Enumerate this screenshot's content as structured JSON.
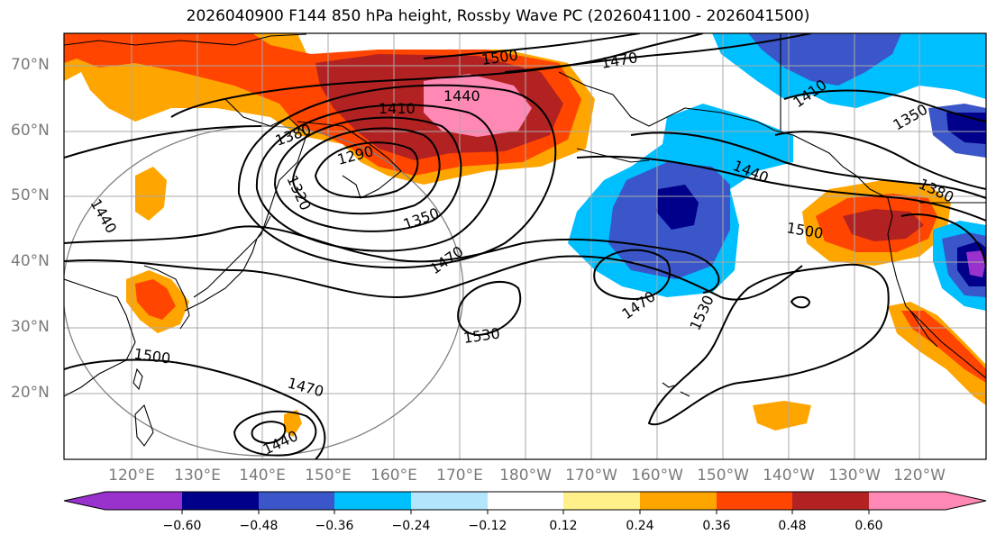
{
  "title": "2026040900 F144 850 hPa height, Rossby Wave PC (2026041100 - 2026041500)",
  "map": {
    "lat_labels": [
      "70°N",
      "60°N",
      "50°N",
      "40°N",
      "30°N",
      "20°N"
    ],
    "lon_labels": [
      "120°E",
      "130°E",
      "140°E",
      "150°E",
      "160°E",
      "170°E",
      "180°W",
      "170°W",
      "160°W",
      "150°W",
      "140°W",
      "130°W",
      "120°W"
    ],
    "contour_labels": [
      "1500",
      "1470",
      "1440",
      "1410",
      "1380",
      "1290",
      "1320",
      "1350",
      "1470",
      "1530",
      "1440",
      "1500",
      "1410",
      "1350",
      "1380",
      "1470",
      "1530",
      "1500",
      "1470",
      "1440",
      "1410"
    ]
  },
  "colorbar": {
    "tick_labels": [
      "−0.60",
      "−0.48",
      "−0.36",
      "−0.24",
      "−0.12",
      "0.12",
      "0.24",
      "0.36",
      "0.48",
      "0.60"
    ],
    "colors": [
      "#9932cc",
      "#00008b",
      "#3a56c8",
      "#00bfff",
      "#b3e5fc",
      "#ffffff",
      "#fff08a",
      "#ffa500",
      "#ff4500",
      "#b22222",
      "#ff88b4"
    ]
  }
}
